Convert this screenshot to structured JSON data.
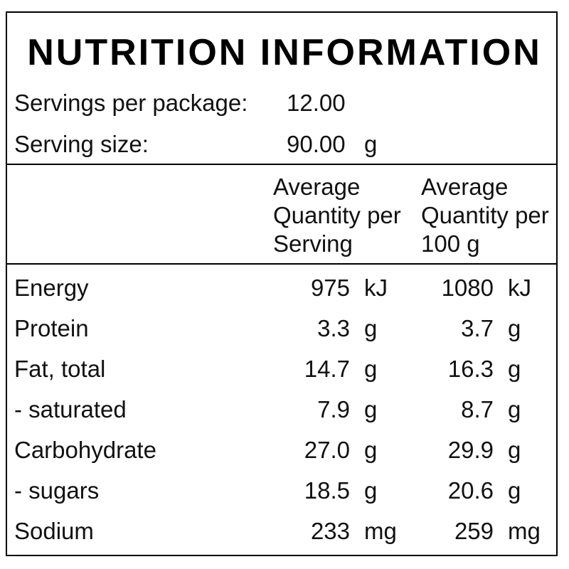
{
  "panel": {
    "title": "NUTRITION INFORMATION",
    "servings_per_package_label": "Servings per package:",
    "servings_per_package_value": "12.00",
    "serving_size_label": "Serving size:",
    "serving_size_value": "90.00",
    "serving_size_unit": "g"
  },
  "columns": {
    "per_serving": [
      "Average",
      "Quantity per",
      "Serving"
    ],
    "per_100g": [
      "Average",
      "Quantity per",
      "100 g"
    ]
  },
  "nutrients": [
    {
      "name": "Energy",
      "serving": "975",
      "serving_unit": "kJ",
      "per100": "1080",
      "per100_unit": "kJ"
    },
    {
      "name": "Protein",
      "serving": "3.3",
      "serving_unit": "g",
      "per100": "3.7",
      "per100_unit": "g"
    },
    {
      "name": "Fat, total",
      "serving": "14.7",
      "serving_unit": "g",
      "per100": "16.3",
      "per100_unit": "g"
    },
    {
      "name": "- saturated",
      "serving": "7.9",
      "serving_unit": "g",
      "per100": "8.7",
      "per100_unit": "g"
    },
    {
      "name": "Carbohydrate",
      "serving": "27.0",
      "serving_unit": "g",
      "per100": "29.9",
      "per100_unit": "g"
    },
    {
      "name": "- sugars",
      "serving": "18.5",
      "serving_unit": "g",
      "per100": "20.6",
      "per100_unit": "g"
    },
    {
      "name": "Sodium",
      "serving": "233",
      "serving_unit": "mg",
      "per100": "259",
      "per100_unit": "mg"
    }
  ]
}
